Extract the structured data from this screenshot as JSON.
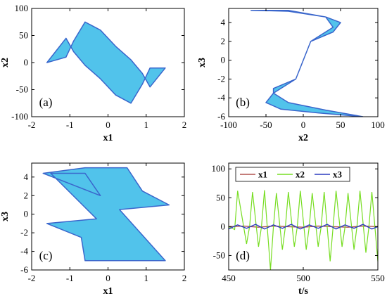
{
  "colors": {
    "traj_fill": "#33b8e8",
    "traj_stroke": "#3a66cc",
    "x1": "#b0524f",
    "x2": "#77dd22",
    "x3": "#2b3bbf"
  },
  "chart_data": [
    {
      "type": "line",
      "panel": "(a)",
      "xlabel": "x1",
      "ylabel": "x2",
      "xlim": [
        -2,
        2
      ],
      "ylim": [
        -100,
        100
      ],
      "xticks": [
        "-2",
        "-1",
        "0",
        "1",
        "2"
      ],
      "yticks": [
        "-100",
        "-50",
        "0",
        "50",
        "100"
      ],
      "series": [
        {
          "x": [
            -1.6,
            -1.1,
            -0.9,
            -0.6,
            -0.2,
            0.2,
            0.6,
            0.9,
            1.1,
            1.5,
            1.1,
            0.9,
            0.6,
            0.2,
            -0.2,
            -0.6,
            -0.9,
            -1.1
          ],
          "y": [
            0,
            10,
            40,
            75,
            60,
            30,
            5,
            -20,
            -45,
            -10,
            -10,
            -40,
            -75,
            -60,
            -30,
            -5,
            20,
            45
          ]
        }
      ]
    },
    {
      "type": "line",
      "panel": "(b)",
      "xlabel": "x2",
      "ylabel": "x3",
      "xlim": [
        -100,
        100
      ],
      "ylim": [
        -6,
        5.5
      ],
      "xticks": [
        "-100",
        "-50",
        "0",
        "50",
        "100"
      ],
      "yticks": [
        "-6",
        "-4",
        "-2",
        "0",
        "2",
        "4"
      ],
      "series": [
        {
          "x": [
            -70,
            -20,
            30,
            40,
            10,
            0,
            -10,
            -40,
            -50,
            -30,
            20,
            80,
            30,
            -20,
            -40,
            -40,
            -10,
            0,
            10,
            40,
            50,
            30,
            -20,
            -70
          ],
          "y": [
            5.3,
            5.3,
            4.6,
            3.5,
            2.0,
            0,
            -2.0,
            -3.5,
            -4.5,
            -5.2,
            -5.6,
            -6.0,
            -5.3,
            -4.5,
            -3.5,
            -3.0,
            -2.0,
            0,
            2.0,
            3.0,
            4.0,
            4.6,
            5.2,
            5.3
          ]
        }
      ]
    },
    {
      "type": "line",
      "panel": "(c)",
      "xlabel": "x1",
      "ylabel": "x3",
      "xlim": [
        -2,
        2
      ],
      "ylim": [
        -6,
        5.5
      ],
      "xticks": [
        "-2",
        "-1",
        "0",
        "1",
        "2"
      ],
      "yticks": [
        "-6",
        "-4",
        "-2",
        "0",
        "2",
        "4"
      ],
      "series": [
        {
          "x": [
            -1.7,
            -0.6,
            0.5,
            0.9,
            1.6,
            0.3,
            1.5,
            0.5,
            -0.6,
            -0.7,
            -1.6,
            -0.3,
            -1.5,
            -0.6,
            -0.2,
            -1.7
          ],
          "y": [
            4.4,
            5.0,
            5.0,
            2.5,
            1.0,
            0.5,
            -5.0,
            -5.0,
            -5.0,
            -2.5,
            -1.0,
            -0.5,
            4.4,
            4.4,
            2.0,
            4.4
          ]
        }
      ]
    },
    {
      "type": "line",
      "panel": "(d)",
      "xlabel": "t/s",
      "ylabel": "",
      "xlim": [
        450,
        550
      ],
      "ylim": [
        -75,
        110
      ],
      "xticks": [
        "450",
        "500",
        "550"
      ],
      "yticks": [
        "-50",
        "0",
        "50",
        "100"
      ],
      "legend": "top",
      "series": [
        {
          "name": "x1",
          "x": [
            450,
            460,
            470,
            480,
            490,
            500,
            510,
            520,
            530,
            540,
            550
          ],
          "y": [
            0,
            1,
            -1,
            1,
            0,
            -1,
            1,
            0,
            -1,
            1,
            0
          ]
        },
        {
          "name": "x2",
          "x": [
            450,
            454,
            456,
            462,
            464,
            466,
            470,
            472,
            474,
            478,
            480,
            482,
            486,
            488,
            490,
            494,
            496,
            498,
            502,
            504,
            506,
            510,
            512,
            514,
            518,
            520,
            522,
            526,
            528,
            530,
            534,
            536,
            538,
            542,
            544,
            546,
            548,
            550
          ],
          "y": [
            0,
            -5,
            62,
            -30,
            0,
            60,
            -35,
            0,
            63,
            -75,
            0,
            58,
            -40,
            0,
            60,
            -35,
            0,
            62,
            -40,
            0,
            58,
            -35,
            0,
            60,
            -60,
            0,
            62,
            -35,
            0,
            58,
            -40,
            0,
            62,
            -45,
            0,
            60,
            0,
            -60
          ]
        },
        {
          "name": "x3",
          "x": [
            450,
            456,
            462,
            468,
            474,
            480,
            486,
            492,
            498,
            504,
            510,
            516,
            522,
            528,
            534,
            540,
            546,
            550
          ],
          "y": [
            -4,
            3,
            -3,
            4,
            -4,
            3,
            -3,
            4,
            -4,
            3,
            -3,
            4,
            -4,
            3,
            -3,
            4,
            -4,
            0
          ]
        }
      ]
    }
  ]
}
